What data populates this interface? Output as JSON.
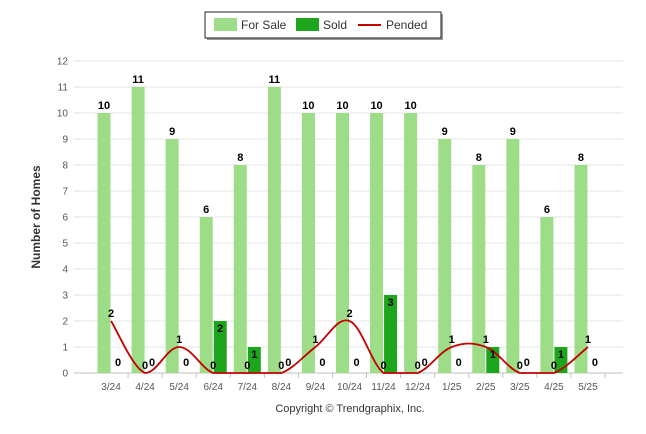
{
  "chart_data": {
    "type": "bar",
    "categories": [
      "3/24",
      "4/24",
      "5/24",
      "6/24",
      "7/24",
      "8/24",
      "9/24",
      "10/24",
      "11/24",
      "12/24",
      "1/25",
      "2/25",
      "3/25",
      "4/25",
      "5/25"
    ],
    "series": [
      {
        "name": "For Sale",
        "type": "bar",
        "color": "#9ddd88",
        "values": [
          10,
          11,
          9,
          6,
          8,
          11,
          10,
          10,
          10,
          10,
          9,
          8,
          9,
          6,
          8
        ]
      },
      {
        "name": "Sold",
        "type": "bar",
        "color": "#1da51d",
        "values": [
          0,
          0,
          0,
          2,
          1,
          0,
          0,
          0,
          3,
          0,
          0,
          1,
          0,
          1,
          0
        ]
      },
      {
        "name": "Pended",
        "type": "line",
        "color": "#c40000",
        "values": [
          2,
          0,
          1,
          0,
          0,
          0,
          1,
          2,
          0,
          0,
          1,
          1,
          0,
          0,
          1
        ]
      }
    ],
    "ylabel": "Number of Homes",
    "xlabel": "",
    "ylim": [
      0,
      12
    ],
    "yticks": [
      "0",
      "1",
      "2",
      "3",
      "4",
      "5",
      "6",
      "7",
      "8",
      "9",
      "10",
      "11",
      "12"
    ],
    "grid": true,
    "legend_position": "top-center"
  },
  "copyright": "Copyright © Trendgraphix, Inc."
}
